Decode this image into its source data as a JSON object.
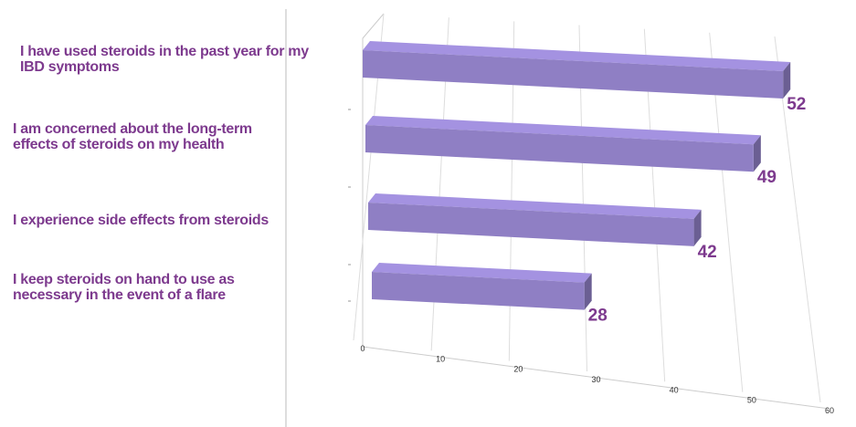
{
  "chart_data": {
    "type": "bar3d",
    "categories": [
      "I have used steroids in the past year for my IBD symptoms",
      "I am concerned about the long-term effects of steroids on my health",
      "I experience side effects from steroids",
      "I keep steroids on hand to use as necessary in the event of a flare"
    ],
    "values": [
      52,
      49,
      42,
      28
    ],
    "color": "#8f7fc4",
    "label_color": "#7d3a8e",
    "xlim": [
      0,
      60
    ],
    "xticks": [
      0,
      10,
      20,
      30,
      40,
      50,
      60
    ],
    "grid": true
  }
}
